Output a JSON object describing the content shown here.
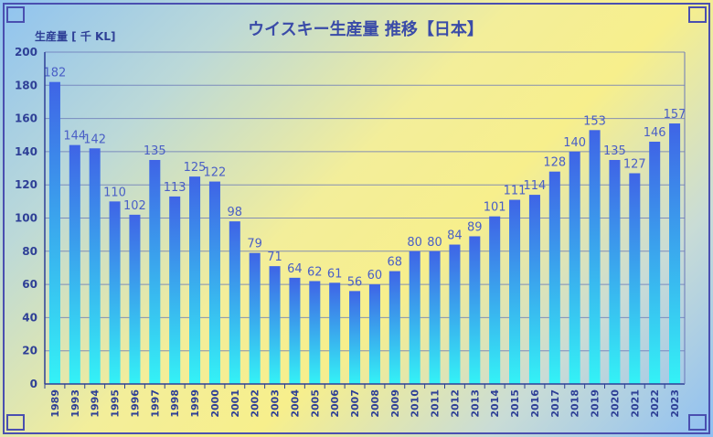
{
  "chart_data": {
    "type": "bar",
    "title": "ウイスキー生産量 推移【日本】",
    "ylabel": "生産量 [ 千 KL]",
    "xlabel": "",
    "ylim": [
      0,
      200
    ],
    "yticks": [
      0,
      20,
      40,
      60,
      80,
      100,
      120,
      140,
      160,
      180,
      200
    ],
    "grid": true,
    "categories": [
      "1989",
      "1993",
      "1994",
      "1995",
      "1996",
      "1997",
      "1998",
      "1999",
      "2000",
      "2001",
      "2002",
      "2003",
      "2004",
      "2005",
      "2006",
      "2007",
      "2008",
      "2009",
      "2010",
      "2011",
      "2012",
      "2013",
      "2014",
      "2015",
      "2016",
      "2017",
      "2018",
      "2019",
      "2020",
      "2021",
      "2022",
      "2023"
    ],
    "values": [
      182,
      144,
      142,
      110,
      102,
      135,
      113,
      125,
      122,
      98,
      79,
      71,
      64,
      62,
      61,
      56,
      60,
      68,
      80,
      80,
      84,
      89,
      101,
      111,
      114,
      128,
      140,
      153,
      135,
      127,
      146,
      157
    ],
    "colors": {
      "bar_top": "#3f64e6",
      "bar_bottom": "#34f2f6",
      "grid": "#6a78b8",
      "axis": "#2e3f96",
      "frame_border": "#4a4fb0"
    }
  }
}
